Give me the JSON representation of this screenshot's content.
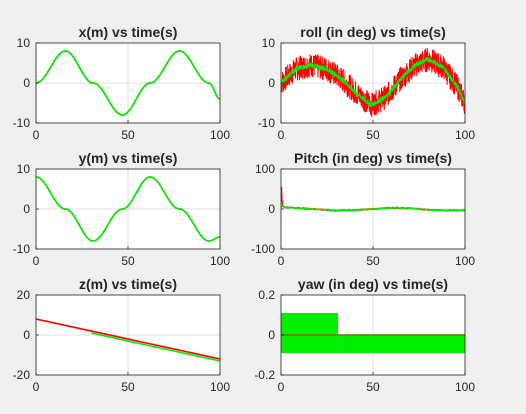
{
  "colors": {
    "background": "#f0f0f0",
    "axes_bg": "#ffffff",
    "series_red": "#ff0000",
    "series_green": "#00ee00",
    "series_olive": "#7a6e00",
    "grid": "#dfdfdf",
    "axis": "#262626"
  },
  "chart_data": [
    {
      "type": "line",
      "title": "x(m) vs time(s)",
      "xlim": [
        0,
        100
      ],
      "ylim": [
        -10,
        10
      ],
      "xticks": [
        "0",
        "50",
        "100"
      ],
      "yticks": [
        "10",
        "0",
        "-10"
      ],
      "grid": true,
      "series": [
        {
          "color": "#7a6e00",
          "x": [
            0,
            16,
            31,
            47,
            62,
            78,
            94,
            100
          ],
          "y": [
            0,
            8,
            0,
            -8,
            0,
            8,
            0,
            -4
          ]
        },
        {
          "color": "#00ee00",
          "x": [
            0,
            16,
            31,
            47,
            62,
            78,
            94,
            100
          ],
          "y": [
            0,
            8,
            0,
            -8,
            0,
            8,
            0,
            -4
          ]
        }
      ]
    },
    {
      "type": "line",
      "title": "roll (in deg) vs time(s)",
      "xlim": [
        0,
        100
      ],
      "ylim": [
        -10,
        10
      ],
      "xticks": [
        "0",
        "50",
        "100"
      ],
      "yticks": [
        "10",
        "0",
        "-10"
      ],
      "grid": true,
      "series": [
        {
          "color": "#ff0000",
          "x": [
            0,
            8,
            16,
            25,
            33,
            41,
            49,
            57,
            65,
            73,
            80,
            88,
            96,
            100
          ],
          "y": [
            0,
            3.5,
            4.5,
            3.5,
            1,
            -2.5,
            -5.5,
            -3.5,
            1,
            4.5,
            6,
            4,
            -1,
            -5
          ],
          "noise": 3
        },
        {
          "color": "#00ee00",
          "x": [
            0,
            8,
            16,
            25,
            33,
            41,
            49,
            57,
            65,
            73,
            80,
            88,
            96,
            100
          ],
          "y": [
            0,
            3.5,
            4.5,
            3.5,
            1,
            -2.5,
            -5.5,
            -3.5,
            1,
            4.5,
            6,
            4,
            -1,
            -5
          ],
          "noise": 0.6
        }
      ]
    },
    {
      "type": "line",
      "title": "y(m) vs time(s)",
      "xlim": [
        0,
        100
      ],
      "ylim": [
        -10,
        10
      ],
      "xticks": [
        "0",
        "50",
        "100"
      ],
      "yticks": [
        "10",
        "0",
        "-10"
      ],
      "grid": true,
      "series": [
        {
          "color": "#7a6e00",
          "x": [
            0,
            16,
            31,
            47,
            62,
            78,
            94,
            100
          ],
          "y": [
            8,
            0,
            -8,
            0,
            8,
            0,
            -8,
            -7
          ]
        },
        {
          "color": "#00ee00",
          "x": [
            0,
            16,
            31,
            47,
            62,
            78,
            94,
            100
          ],
          "y": [
            8,
            0,
            -8,
            0,
            8,
            0,
            -8,
            -7
          ]
        }
      ]
    },
    {
      "type": "line",
      "title": "Pitch (in deg) vs time(s)",
      "xlim": [
        0,
        100
      ],
      "ylim": [
        -100,
        100
      ],
      "xticks": [
        "0",
        "50",
        "100"
      ],
      "yticks": [
        "100",
        "0",
        "-100"
      ],
      "grid": true,
      "series": [
        {
          "color": "#ff0000",
          "x": [
            0,
            0.3,
            0.6,
            1,
            2,
            10,
            20,
            30,
            40,
            50,
            60,
            70,
            80,
            90,
            100
          ],
          "y": [
            0,
            60,
            20,
            8,
            4,
            2,
            -1,
            -4,
            -3,
            0,
            3,
            2,
            -2,
            -4,
            -3
          ],
          "noise": 2
        },
        {
          "color": "#00ee00",
          "x": [
            0,
            1,
            2,
            10,
            20,
            30,
            40,
            50,
            60,
            70,
            80,
            90,
            100
          ],
          "y": [
            6,
            7,
            4,
            2,
            -1,
            -4,
            -3,
            0,
            3,
            2,
            -2,
            -4,
            -3
          ],
          "noise": 1.5
        }
      ]
    },
    {
      "type": "line",
      "title": "z(m) vs time(s)",
      "xlim": [
        0,
        100
      ],
      "ylim": [
        -20,
        20
      ],
      "xticks": [
        "0",
        "50",
        "100"
      ],
      "yticks": [
        "20",
        "0",
        "-20"
      ],
      "grid": true,
      "series": [
        {
          "color": "#ff0000",
          "x": [
            0,
            100
          ],
          "y": [
            8,
            -12
          ]
        },
        {
          "color": "#00ee00",
          "x": [
            30,
            100
          ],
          "y": [
            1,
            -13
          ]
        }
      ]
    },
    {
      "type": "line",
      "title": "yaw (in deg) vs time(s)",
      "xlim": [
        0,
        100
      ],
      "ylim": [
        -0.2,
        0.2
      ],
      "xticks": [
        "0",
        "50",
        "100"
      ],
      "yticks": [
        "0.2",
        "0",
        "-0.2"
      ],
      "grid": true,
      "series": [
        {
          "color": "#00ee00",
          "style": "band",
          "bands": [
            {
              "x": [
                0,
                31
              ],
              "y": [
                -0.09,
                0.11
              ]
            },
            {
              "x": [
                31,
                100
              ],
              "y": [
                -0.09,
                0.0
              ]
            }
          ]
        },
        {
          "color": "#7a6e00",
          "x": [
            0,
            100
          ],
          "y": [
            0,
            0
          ]
        }
      ]
    }
  ]
}
